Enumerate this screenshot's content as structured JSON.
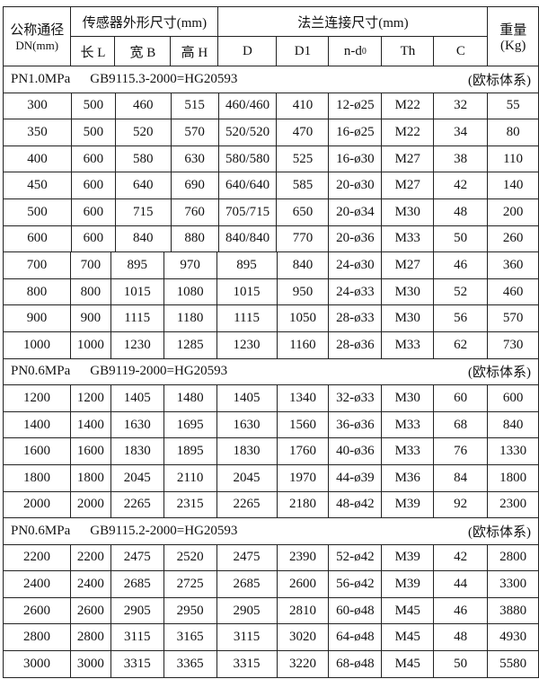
{
  "header": {
    "dn_label": "公称通径",
    "dn_unit": "DN(mm)",
    "sensor_group": "传感器外形尺寸(mm)",
    "flange_group": "法兰连接尺寸(mm)",
    "weight_label": "重量",
    "weight_unit": "(Kg)",
    "sensor_cols": [
      "长 L",
      "宽 B",
      "高 H"
    ],
    "flange_cols": [
      "D",
      "D1",
      "n-d",
      "Th",
      "C"
    ],
    "nd_sub": "0"
  },
  "sections": [
    {
      "pressure": "PN1.0MPa",
      "standard": "GB9115.3-2000=HG20593",
      "system": "(欧标体系)",
      "rows": [
        [
          "300",
          "500",
          "460",
          "515",
          "460/460",
          "410",
          "12-ø25",
          "M22",
          "32",
          "55"
        ],
        [
          "350",
          "500",
          "520",
          "570",
          "520/520",
          "470",
          "16-ø25",
          "M22",
          "34",
          "80"
        ],
        [
          "400",
          "600",
          "580",
          "630",
          "580/580",
          "525",
          "16-ø30",
          "M27",
          "38",
          "110"
        ],
        [
          "450",
          "600",
          "640",
          "690",
          "640/640",
          "585",
          "20-ø30",
          "M27",
          "42",
          "140"
        ],
        [
          "500",
          "600",
          "715",
          "760",
          "705/715",
          "650",
          "20-ø34",
          "M30",
          "48",
          "200"
        ],
        [
          "600",
          "600",
          "840",
          "880",
          "840/840",
          "770",
          "20-ø36",
          "M33",
          "50",
          "260"
        ],
        [
          "700",
          "700",
          "895",
          "970",
          "895",
          "840",
          "24-ø30",
          "M27",
          "46",
          "360"
        ],
        [
          "800",
          "800",
          "1015",
          "1080",
          "1015",
          "950",
          "24-ø33",
          "M30",
          "52",
          "460"
        ],
        [
          "900",
          "900",
          "1115",
          "1180",
          "1115",
          "1050",
          "28-ø33",
          "M30",
          "56",
          "570"
        ],
        [
          "1000",
          "1000",
          "1230",
          "1285",
          "1230",
          "1160",
          "28-ø36",
          "M33",
          "62",
          "730"
        ]
      ]
    },
    {
      "pressure": "PN0.6MPa",
      "standard": "GB9119-2000=HG20593",
      "system": "(欧标体系)",
      "rows": [
        [
          "1200",
          "1200",
          "1405",
          "1480",
          "1405",
          "1340",
          "32-ø33",
          "M30",
          "60",
          "600"
        ],
        [
          "1400",
          "1400",
          "1630",
          "1695",
          "1630",
          "1560",
          "36-ø36",
          "M33",
          "68",
          "840"
        ],
        [
          "1600",
          "1600",
          "1830",
          "1895",
          "1830",
          "1760",
          "40-ø36",
          "M33",
          "76",
          "1330"
        ],
        [
          "1800",
          "1800",
          "2045",
          "2110",
          "2045",
          "1970",
          "44-ø39",
          "M36",
          "84",
          "1800"
        ],
        [
          "2000",
          "2000",
          "2265",
          "2315",
          "2265",
          "2180",
          "48-ø42",
          "M39",
          "92",
          "2300"
        ]
      ]
    },
    {
      "pressure": "PN0.6MPa",
      "standard": "GB9115.2-2000=HG20593",
      "system": "(欧标体系)",
      "rows": [
        [
          "2200",
          "2200",
          "2475",
          "2520",
          "2475",
          "2390",
          "52-ø42",
          "M39",
          "42",
          "2800"
        ],
        [
          "2400",
          "2400",
          "2685",
          "2725",
          "2685",
          "2600",
          "56-ø42",
          "M39",
          "44",
          "3300"
        ],
        [
          "2600",
          "2600",
          "2905",
          "2950",
          "2905",
          "2810",
          "60-ø48",
          "M45",
          "46",
          "3880"
        ],
        [
          "2800",
          "2800",
          "3115",
          "3165",
          "3115",
          "3020",
          "64-ø48",
          "M45",
          "48",
          "4930"
        ],
        [
          "3000",
          "3000",
          "3315",
          "3365",
          "3315",
          "3220",
          "68-ø48",
          "M45",
          "50",
          "5580"
        ]
      ]
    }
  ]
}
